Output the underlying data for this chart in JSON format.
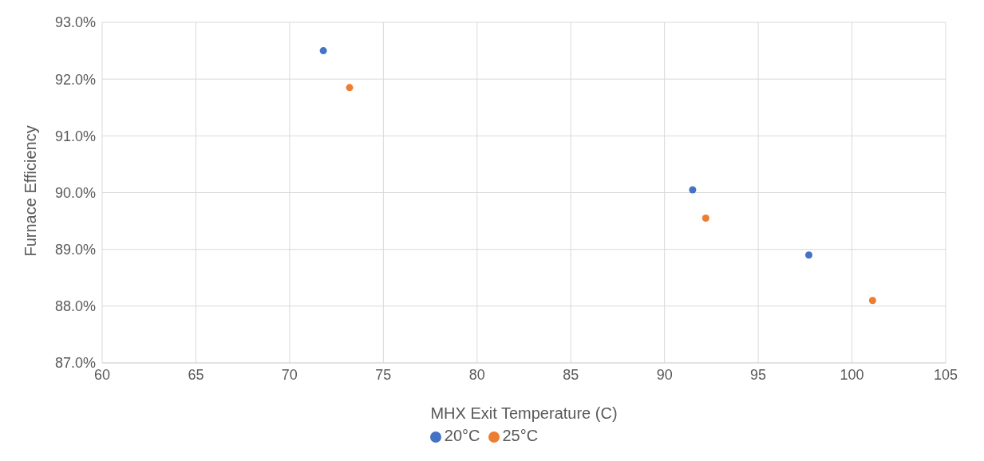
{
  "chart_data": {
    "type": "scatter",
    "xlabel": "MHX Exit Temperature (C)",
    "ylabel": "Furnace Efficiency",
    "series": [
      {
        "name": "20°C",
        "color": "#4472c4",
        "x": [
          71.8,
          91.5,
          97.7
        ],
        "values": [
          92.5,
          90.05,
          88.9
        ]
      },
      {
        "name": "25°C",
        "color": "#ed7d31",
        "x": [
          73.2,
          92.2,
          101.1
        ],
        "values": [
          91.85,
          89.55,
          88.1
        ]
      }
    ],
    "xlim": [
      60,
      105
    ],
    "xticks": [
      60,
      65,
      70,
      75,
      80,
      85,
      90,
      95,
      100,
      105
    ],
    "ylim": [
      87,
      93
    ],
    "yticks": [
      {
        "value": 87,
        "label": "87.0%"
      },
      {
        "value": 88,
        "label": "88.0%"
      },
      {
        "value": 89,
        "label": "89.0%"
      },
      {
        "value": 90,
        "label": "90.0%"
      },
      {
        "value": 91,
        "label": "91.0%"
      },
      {
        "value": 92,
        "label": "92.0%"
      },
      {
        "value": 93,
        "label": "93.0%"
      }
    ],
    "grid": true,
    "legend": "bottom",
    "marker": "circle"
  }
}
